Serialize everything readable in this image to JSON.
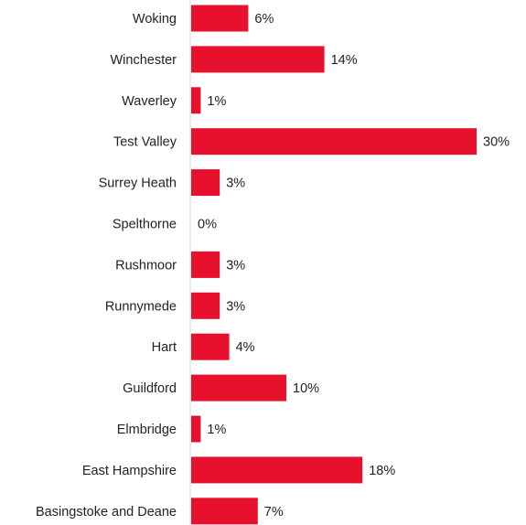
{
  "chart_data": {
    "type": "bar",
    "orientation": "horizontal",
    "title": "",
    "xlabel": "",
    "ylabel": "",
    "xlim": [
      0,
      30
    ],
    "grid": false,
    "legend": "none",
    "bar_color": "#e8112d",
    "categories": [
      "Woking",
      "Winchester",
      "Waverley",
      "Test Valley",
      "Surrey Heath",
      "Spelthorne",
      "Rushmoor",
      "Runnymede",
      "Hart",
      "Guildford",
      "Elmbridge",
      "East Hampshire",
      "Basingstoke and Deane"
    ],
    "values": [
      6,
      14,
      1,
      30,
      3,
      0,
      3,
      3,
      4,
      10,
      1,
      18,
      7
    ],
    "value_labels": [
      "6%",
      "14%",
      "1%",
      "30%",
      "3%",
      "0%",
      "3%",
      "3%",
      "4%",
      "10%",
      "1%",
      "18%",
      "7%"
    ]
  }
}
